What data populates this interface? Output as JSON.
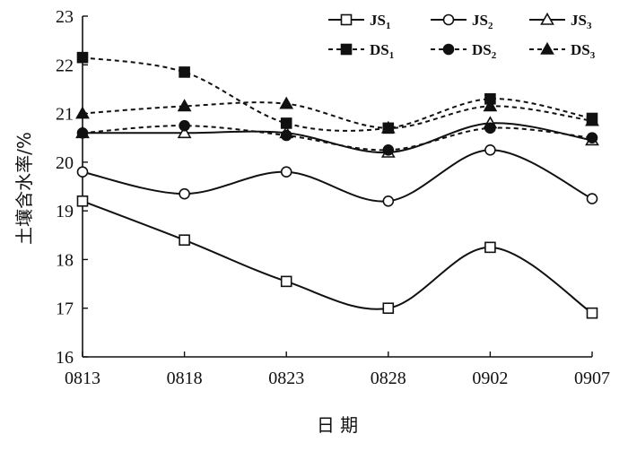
{
  "chart_data": {
    "type": "line",
    "x": [
      "0813",
      "0818",
      "0823",
      "0828",
      "0902",
      "0907"
    ],
    "xlabel": "日 期",
    "ylabel": "土壤含水率/%",
    "ylim": [
      16,
      23
    ],
    "yticks": [
      16,
      17,
      18,
      19,
      20,
      21,
      22,
      23
    ],
    "grid": false,
    "legend_position": "top-right",
    "series": [
      {
        "name": "JS",
        "sub": "1",
        "marker": "square-open",
        "dash": "solid",
        "values": [
          19.2,
          18.4,
          17.55,
          17.0,
          18.25,
          16.9
        ]
      },
      {
        "name": "JS",
        "sub": "2",
        "marker": "circle-open",
        "dash": "solid",
        "values": [
          19.8,
          19.35,
          19.8,
          19.2,
          20.25,
          19.25
        ]
      },
      {
        "name": "JS",
        "sub": "3",
        "marker": "triangle-open",
        "dash": "solid",
        "values": [
          20.6,
          20.6,
          20.6,
          20.2,
          20.8,
          20.45
        ]
      },
      {
        "name": "DS",
        "sub": "1",
        "marker": "square-filled",
        "dash": "dashed",
        "values": [
          22.15,
          21.85,
          20.8,
          20.7,
          21.3,
          20.9
        ]
      },
      {
        "name": "DS",
        "sub": "2",
        "marker": "circle-filled",
        "dash": "dashed",
        "values": [
          20.6,
          20.75,
          20.55,
          20.25,
          20.7,
          20.5
        ]
      },
      {
        "name": "DS",
        "sub": "3",
        "marker": "triangle-filled",
        "dash": "dashed",
        "values": [
          21.0,
          21.15,
          21.2,
          20.7,
          21.15,
          20.85
        ]
      }
    ]
  }
}
